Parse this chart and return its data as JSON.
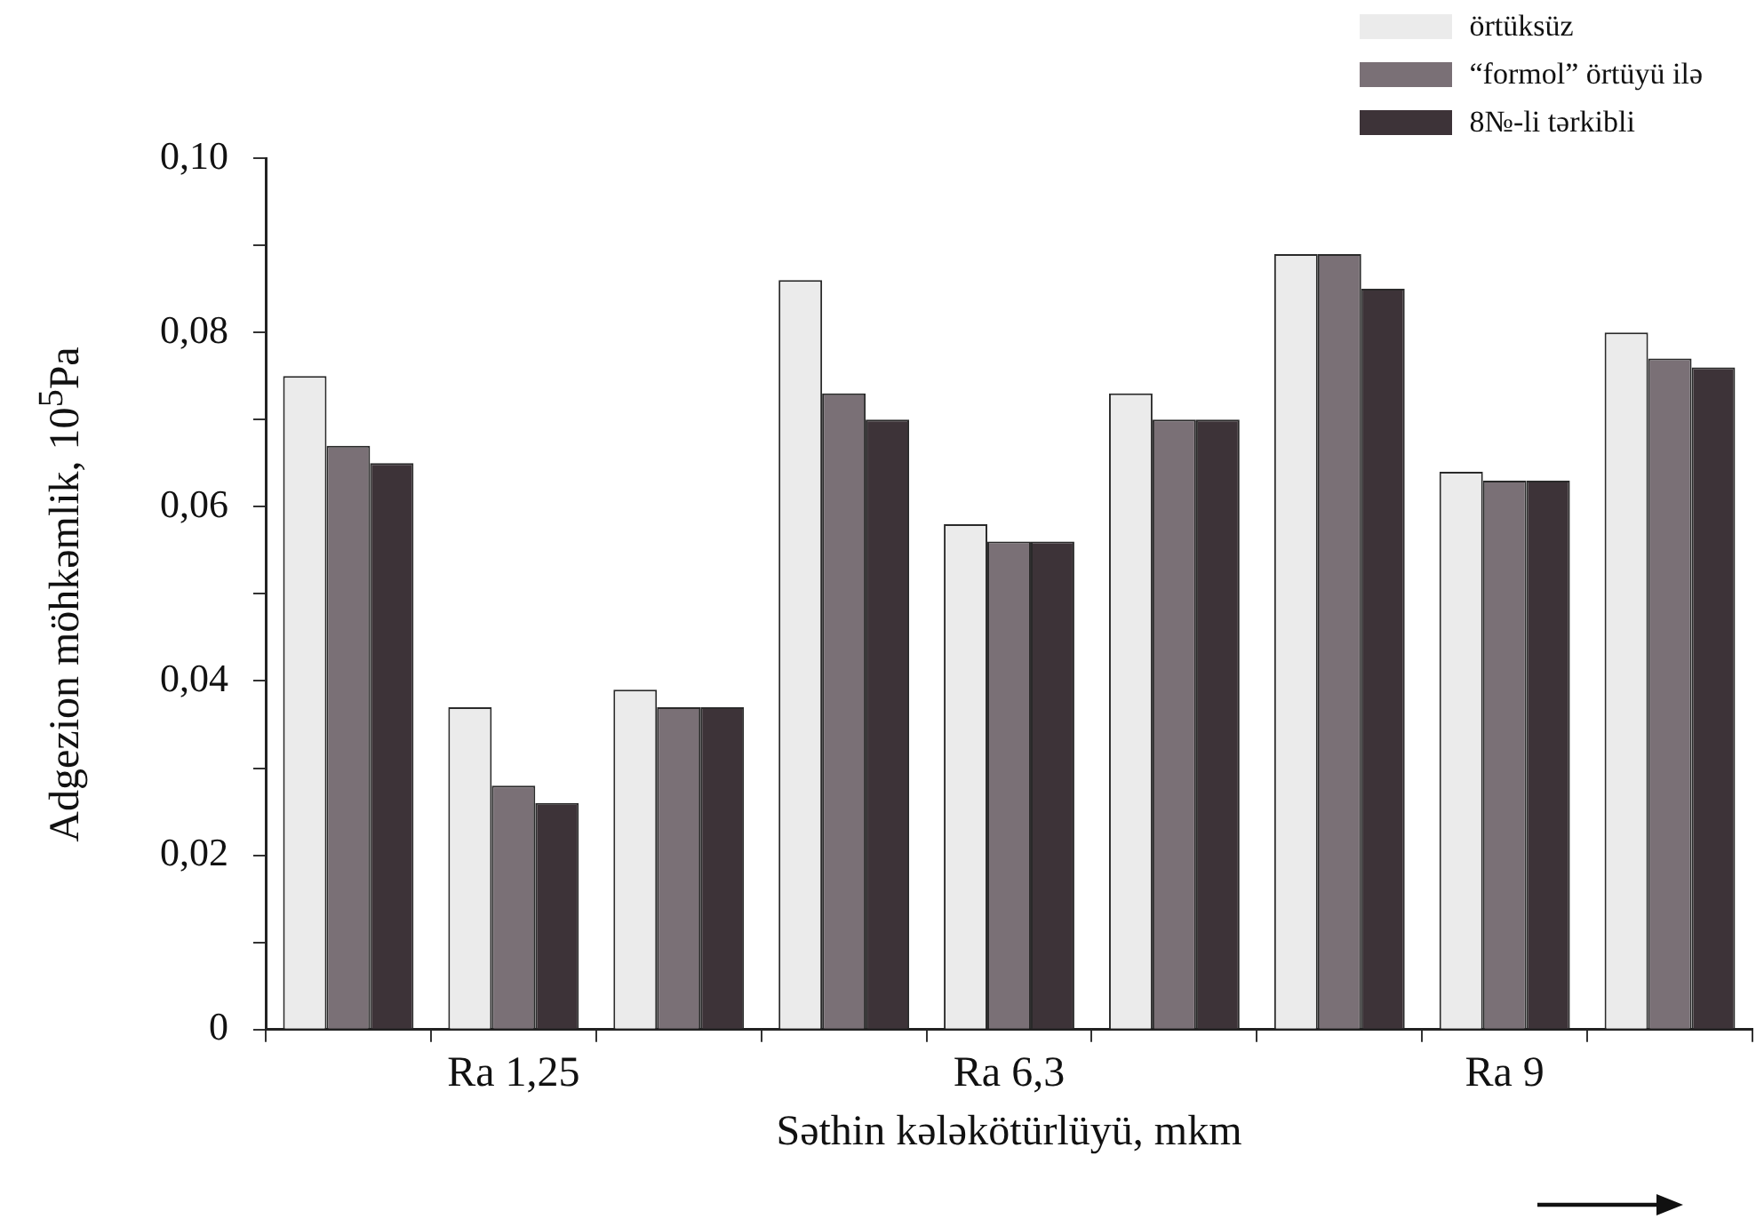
{
  "chart_data": {
    "type": "bar",
    "xlabel": "Səthin kələkötürlüyü, mkm",
    "ylabel": "Adgezion möhkəmlik, 10$^{5}$Pa",
    "categories": [
      null,
      "Ra 1,25",
      null,
      null,
      "Ra 6,3",
      null,
      null,
      "Ra 9",
      null
    ],
    "series": [
      {
        "name": "örtüksüz",
        "color": "#ebebeb",
        "values": [
          0.075,
          0.037,
          0.039,
          0.086,
          0.058,
          0.073,
          0.089,
          0.064,
          0.08
        ]
      },
      {
        "name": "“formol” örtüyü ilə",
        "color": "#7a7076",
        "values": [
          0.067,
          0.028,
          0.037,
          0.073,
          0.056,
          0.07,
          0.089,
          0.063,
          0.077
        ]
      },
      {
        "name": "8№-li tərkibli",
        "color": "#3d3338",
        "values": [
          0.065,
          0.026,
          0.037,
          0.07,
          0.056,
          0.07,
          0.085,
          0.063,
          0.076
        ]
      }
    ],
    "ylim": [
      0,
      0.1
    ],
    "yticks": [
      0,
      {
        "value": 0.01,
        "label": null
      },
      {
        "value": 0.02,
        "label": "0,02"
      },
      {
        "value": 0.03,
        "label": null
      },
      {
        "value": 0.04,
        "label": "0,04"
      },
      {
        "value": 0.05,
        "label": null
      },
      {
        "value": 0.06,
        "label": "0,06"
      },
      {
        "value": 0.07,
        "label": null
      },
      {
        "value": 0.08,
        "label": "0,08"
      },
      {
        "value": 0.09,
        "label": null
      },
      {
        "value": 0.1,
        "label": "0,10"
      }
    ],
    "legend": "top right"
  }
}
